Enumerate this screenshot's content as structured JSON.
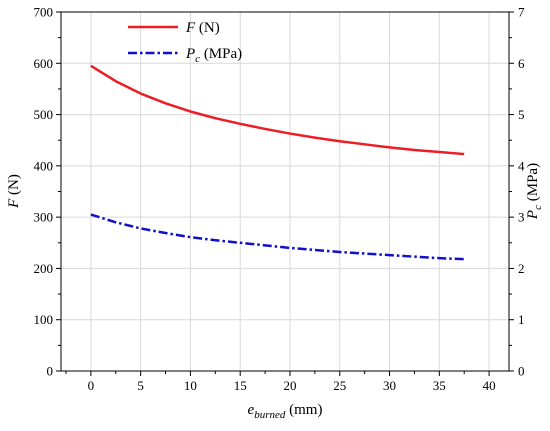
{
  "chart_data": {
    "type": "line",
    "x_axis": {
      "label_sym": "e",
      "label_sub": "burned",
      "label_unit": " (mm)",
      "range": [
        -3,
        42
      ],
      "ticks": [
        0,
        5,
        10,
        15,
        20,
        25,
        30,
        35,
        40
      ],
      "tick_labels": [
        "0",
        "5",
        "10",
        "15",
        "20",
        "25",
        "30",
        "35",
        "40"
      ]
    },
    "y_left_axis": {
      "label_sym": "F",
      "label_unit": " (N)",
      "range": [
        0,
        700
      ],
      "ticks": [
        0,
        100,
        200,
        300,
        400,
        500,
        600,
        700
      ],
      "tick_labels": [
        "0",
        "100",
        "200",
        "300",
        "400",
        "500",
        "600",
        "700"
      ]
    },
    "y_right_axis": {
      "label_sym": "P",
      "label_sub": "c",
      "label_unit": " (MPa)",
      "range": [
        0,
        7
      ],
      "ticks": [
        0,
        1,
        2,
        3,
        4,
        5,
        6,
        7
      ],
      "tick_labels": [
        "0",
        "1",
        "2",
        "3",
        "4",
        "5",
        "6",
        "7"
      ]
    },
    "grid": true,
    "legend_position": "top-left",
    "series": [
      {
        "name": "F (N)",
        "name_sym": "F",
        "name_unit": " (N)",
        "axis": "left",
        "color": "#ee1c24",
        "style": "solid",
        "x": [
          0,
          2.5,
          5,
          7.5,
          10,
          12.5,
          15,
          17.5,
          20,
          22.5,
          25,
          27.5,
          30,
          32.5,
          35,
          37.5
        ],
        "y": [
          595,
          565,
          541,
          522,
          506,
          493,
          482,
          472,
          463,
          455,
          448,
          442,
          436,
          431,
          427,
          423
        ]
      },
      {
        "name": "Pc (MPa)",
        "name_sym": "P",
        "name_sub": "c",
        "name_unit": " (MPa)",
        "axis": "right",
        "color": "#1010c8",
        "style": "dash-dot",
        "x": [
          0,
          2.5,
          5,
          7.5,
          10,
          12.5,
          15,
          17.5,
          20,
          22.5,
          25,
          27.5,
          30,
          32.5,
          35,
          37.5
        ],
        "y": [
          3.05,
          2.9,
          2.78,
          2.69,
          2.61,
          2.55,
          2.5,
          2.45,
          2.4,
          2.36,
          2.32,
          2.29,
          2.26,
          2.23,
          2.2,
          2.18
        ]
      }
    ]
  }
}
